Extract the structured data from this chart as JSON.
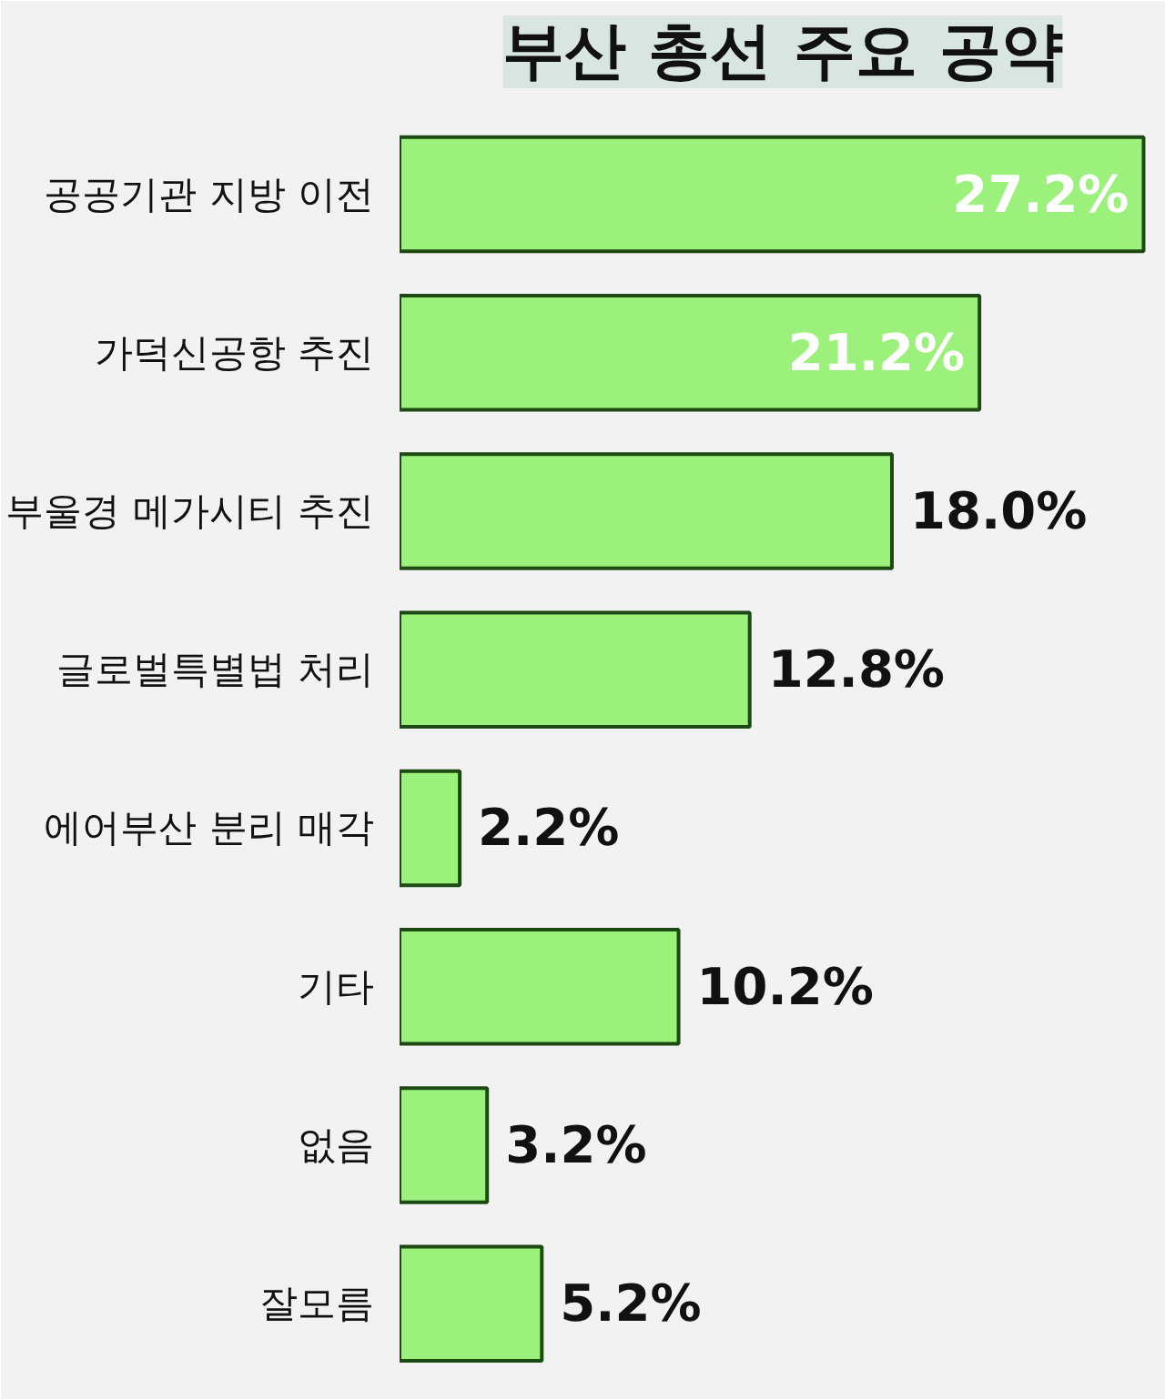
{
  "chart_data": {
    "type": "bar",
    "orientation": "horizontal",
    "title": "부산 총선 주요 공약",
    "categories": [
      "공공기관 지방 이전",
      "가덕신공항 추진",
      "부울경 메가시티 추진",
      "글로벌특별법 처리",
      "에어부산 분리 매각",
      "기타",
      "없음",
      "잘모름"
    ],
    "values": [
      27.2,
      21.2,
      18.0,
      12.8,
      2.2,
      10.2,
      3.2,
      5.2
    ],
    "value_labels": [
      "27.2%",
      "21.2%",
      "18.0%",
      "12.8%",
      "2.2%",
      "10.2%",
      "3.2%",
      "5.2%"
    ],
    "color": "#9cf07c",
    "grid": false
  }
}
